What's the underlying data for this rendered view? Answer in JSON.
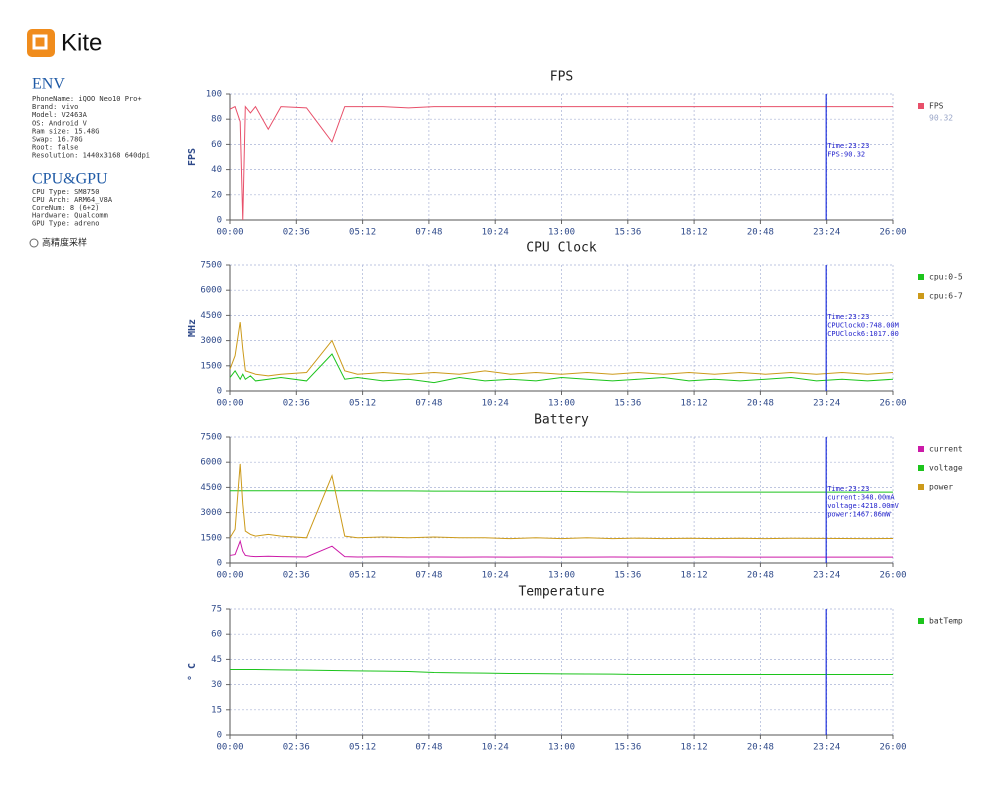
{
  "brand": "Kite",
  "env": {
    "title": "ENV",
    "lines": [
      "PhoneName: iQOO Neo10 Pro+",
      "Brand: vivo",
      "Model: V2463A",
      "OS: Android V",
      "Ram size: 15.48G",
      "Swap: 16.78G",
      "Root: false",
      "Resolution: 1440x3168 640dpi"
    ]
  },
  "cpu_gpu": {
    "title": "CPU&GPU",
    "lines": [
      "CPU Type: SM8750",
      "CPU Arch: ARM64_V8A",
      "CoreNum: 8 (6+2)",
      "Hardware: Qualcomm",
      "GPU Type: adreno"
    ]
  },
  "option": "高精度采样",
  "chart_data": [
    {
      "type": "line",
      "title": "FPS",
      "ylabel": "FPS",
      "xlim": [
        0,
        26
      ],
      "ylim": [
        0,
        100
      ],
      "yticks": [
        0,
        20,
        40,
        60,
        80,
        100
      ],
      "grid": true,
      "xticks": [
        {
          "value": 0,
          "label": "00:00"
        },
        {
          "value": 2.6,
          "label": "02:36"
        },
        {
          "value": 5.2,
          "label": "05:12"
        },
        {
          "value": 7.8,
          "label": "07:48"
        },
        {
          "value": 10.4,
          "label": "10:24"
        },
        {
          "value": 13,
          "label": "13:00"
        },
        {
          "value": 15.6,
          "label": "15:36"
        },
        {
          "value": 18.2,
          "label": "18:12"
        },
        {
          "value": 20.8,
          "label": "20:48"
        },
        {
          "value": 23.4,
          "label": "23:24"
        },
        {
          "value": 26,
          "label": "26:00"
        }
      ],
      "x": [
        0,
        0.2,
        0.4,
        0.5,
        0.6,
        0.8,
        1,
        1.5,
        2,
        3,
        4,
        4.5,
        5,
        6,
        7,
        8,
        9,
        10,
        11,
        12,
        13,
        14,
        15,
        16,
        17,
        18,
        19,
        20,
        21,
        22,
        23,
        24,
        25,
        26
      ],
      "series": [
        {
          "name": "FPS",
          "color": "#e8506a",
          "latest": 90.32,
          "values": [
            88,
            90,
            78,
            0,
            90,
            85,
            90,
            72,
            90,
            89,
            62,
            90,
            90,
            90,
            89,
            90,
            90,
            90,
            90,
            90,
            90,
            90,
            90,
            90,
            90,
            90,
            90,
            90,
            90,
            90,
            90,
            90,
            90,
            90
          ]
        }
      ],
      "cursor": {
        "x": 23.38,
        "lines": [
          "Time:23:23",
          "FPS:90.32"
        ]
      }
    },
    {
      "type": "line",
      "title": "CPU Clock",
      "ylabel": "MHz",
      "xlim": [
        0,
        26
      ],
      "ylim": [
        0,
        7500
      ],
      "yticks": [
        0,
        1500,
        3000,
        4500,
        6000,
        7500
      ],
      "grid": true,
      "xticks": [
        {
          "value": 0,
          "label": "00:00"
        },
        {
          "value": 2.6,
          "label": "02:36"
        },
        {
          "value": 5.2,
          "label": "05:12"
        },
        {
          "value": 7.8,
          "label": "07:48"
        },
        {
          "value": 10.4,
          "label": "10:24"
        },
        {
          "value": 13,
          "label": "13:00"
        },
        {
          "value": 15.6,
          "label": "15:36"
        },
        {
          "value": 18.2,
          "label": "18:12"
        },
        {
          "value": 20.8,
          "label": "20:48"
        },
        {
          "value": 23.4,
          "label": "23:24"
        },
        {
          "value": 26,
          "label": "26:00"
        }
      ],
      "x": [
        0,
        0.2,
        0.4,
        0.5,
        0.6,
        0.8,
        1,
        1.5,
        2,
        3,
        4,
        4.5,
        5,
        6,
        7,
        8,
        9,
        10,
        11,
        12,
        13,
        14,
        15,
        16,
        17,
        18,
        19,
        20,
        21,
        22,
        23,
        24,
        25,
        26
      ],
      "series": [
        {
          "name": "cpu:0-5",
          "color": "#1cc41c",
          "values": [
            800,
            1200,
            700,
            1000,
            700,
            900,
            600,
            700,
            800,
            600,
            2200,
            700,
            800,
            600,
            700,
            500,
            800,
            600,
            700,
            600,
            800,
            700,
            600,
            700,
            800,
            600,
            700,
            600,
            700,
            800,
            600,
            700,
            600,
            700
          ]
        },
        {
          "name": "cpu:6-7",
          "color": "#cc9a1a",
          "values": [
            1300,
            2100,
            4100,
            2500,
            1200,
            1100,
            1000,
            900,
            1000,
            1100,
            3000,
            1200,
            1000,
            1100,
            1000,
            1100,
            1000,
            1200,
            1000,
            1100,
            1000,
            1100,
            1000,
            1100,
            1000,
            1100,
            1000,
            1100,
            1000,
            1100,
            1000,
            1100,
            1000,
            1100
          ]
        }
      ],
      "cursor": {
        "x": 23.38,
        "lines": [
          "Time:23:23",
          "CPUClock0:748.00M",
          "CPUClock6:1017.00"
        ]
      }
    },
    {
      "type": "line",
      "title": "Battery",
      "xlim": [
        0,
        26
      ],
      "ylim": [
        0,
        7500
      ],
      "yticks": [
        0,
        1500,
        3000,
        4500,
        6000,
        7500
      ],
      "grid": true,
      "xticks": [
        {
          "value": 0,
          "label": "00:00"
        },
        {
          "value": 2.6,
          "label": "02:36"
        },
        {
          "value": 5.2,
          "label": "05:12"
        },
        {
          "value": 7.8,
          "label": "07:48"
        },
        {
          "value": 10.4,
          "label": "10:24"
        },
        {
          "value": 13,
          "label": "13:00"
        },
        {
          "value": 15.6,
          "label": "15:36"
        },
        {
          "value": 18.2,
          "label": "18:12"
        },
        {
          "value": 20.8,
          "label": "20:48"
        },
        {
          "value": 23.4,
          "label": "23:24"
        },
        {
          "value": 26,
          "label": "26:00"
        }
      ],
      "x": [
        0,
        0.2,
        0.4,
        0.5,
        0.6,
        0.8,
        1,
        1.5,
        2,
        3,
        4,
        4.5,
        5,
        6,
        7,
        8,
        9,
        10,
        11,
        12,
        13,
        14,
        15,
        16,
        17,
        18,
        19,
        20,
        21,
        22,
        23,
        24,
        25,
        26
      ],
      "series": [
        {
          "name": "current",
          "color": "#cc1aa8",
          "values": [
            450,
            500,
            1300,
            700,
            450,
            400,
            380,
            400,
            380,
            360,
            1000,
            380,
            360,
            370,
            360,
            360,
            350,
            360,
            350,
            360,
            350,
            350,
            360,
            350,
            350,
            350,
            360,
            350,
            350,
            350,
            348,
            350,
            350,
            350
          ]
        },
        {
          "name": "voltage",
          "color": "#1cc41c",
          "values": [
            4300,
            4300,
            4300,
            4300,
            4300,
            4300,
            4300,
            4300,
            4300,
            4300,
            4300,
            4300,
            4300,
            4290,
            4290,
            4280,
            4280,
            4270,
            4270,
            4260,
            4260,
            4250,
            4240,
            4218,
            4218,
            4218,
            4218,
            4218,
            4218,
            4218,
            4218,
            4218,
            4218,
            4218
          ]
        },
        {
          "name": "power",
          "color": "#cc9a1a",
          "values": [
            1500,
            2000,
            5900,
            3500,
            1900,
            1700,
            1600,
            1700,
            1600,
            1500,
            5200,
            1600,
            1500,
            1550,
            1500,
            1550,
            1500,
            1500,
            1450,
            1500,
            1450,
            1500,
            1450,
            1480,
            1450,
            1470,
            1450,
            1470,
            1450,
            1470,
            1467.86,
            1460,
            1450,
            1460
          ]
        }
      ],
      "cursor": {
        "x": 23.38,
        "lines": [
          "Time:23:23",
          "current:348.00mA",
          "voltage:4218.00mV",
          "power:1467.86mW"
        ]
      }
    },
    {
      "type": "line",
      "title": "Temperature",
      "ylabel": "° C",
      "xlim": [
        0,
        26
      ],
      "ylim": [
        0,
        75
      ],
      "yticks": [
        0,
        15,
        30,
        45,
        60,
        75
      ],
      "grid": true,
      "xticks": [
        {
          "value": 0,
          "label": "00:00"
        },
        {
          "value": 2.6,
          "label": "02:36"
        },
        {
          "value": 5.2,
          "label": "05:12"
        },
        {
          "value": 7.8,
          "label": "07:48"
        },
        {
          "value": 10.4,
          "label": "10:24"
        },
        {
          "value": 13,
          "label": "13:00"
        },
        {
          "value": 15.6,
          "label": "15:36"
        },
        {
          "value": 18.2,
          "label": "18:12"
        },
        {
          "value": 20.8,
          "label": "20:48"
        },
        {
          "value": 23.4,
          "label": "23:24"
        },
        {
          "value": 26,
          "label": "26:00"
        }
      ],
      "x": [
        0,
        1,
        2,
        3,
        4,
        5,
        6,
        7,
        8,
        9,
        10,
        11,
        12,
        13,
        14,
        15,
        16,
        17,
        18,
        19,
        20,
        21,
        22,
        23,
        24,
        25,
        26
      ],
      "series": [
        {
          "name": "batTemp",
          "color": "#1cc41c",
          "values": [
            39,
            39,
            38.8,
            38.6,
            38.4,
            38.2,
            38,
            37.8,
            37.2,
            37,
            36.8,
            36.6,
            36.5,
            36.4,
            36.3,
            36.2,
            36,
            36,
            36,
            36,
            36,
            36,
            36,
            36,
            36,
            36,
            36
          ]
        }
      ],
      "cursor": {
        "x": 23.38
      }
    }
  ]
}
